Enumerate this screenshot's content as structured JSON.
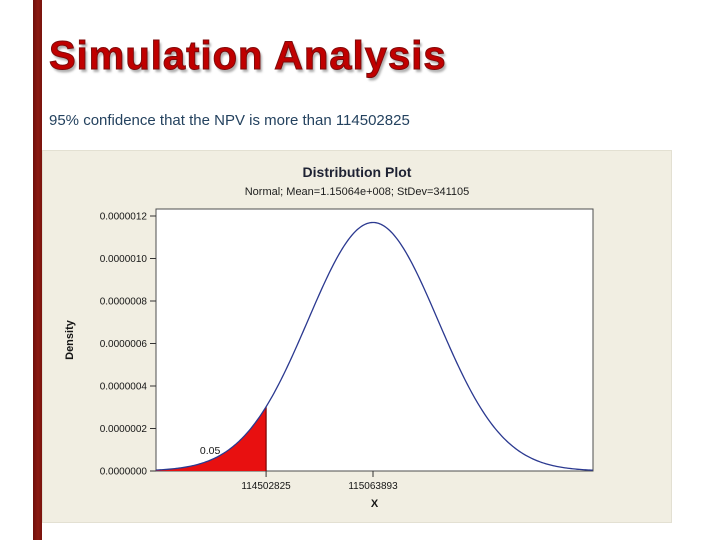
{
  "slide": {
    "title": "Simulation Analysis",
    "subtitle": "95% confidence that the NPV is more than 114502825"
  },
  "chart_data": {
    "type": "area",
    "title": "Distribution Plot",
    "subtitle": "Normal; Mean=1.15064e+008; StDev=341105",
    "xlabel": "X",
    "ylabel": "Density",
    "distribution": {
      "name": "normal",
      "mean": 115063893,
      "stdev": 341105
    },
    "shaded_region": {
      "side": "left-tail",
      "boundary": 114502825,
      "area_label": "0.05"
    },
    "x_ticks": [
      114502825,
      115063893
    ],
    "y_ticks": [
      1.2e-06,
      1e-06,
      8e-07,
      6e-07,
      4e-07,
      2e-07,
      0.0
    ],
    "ylim": [
      0,
      1.2e-06
    ],
    "legend": false,
    "grid": false,
    "colors": {
      "curve": "#2b3990",
      "tail_fill": "#e81010",
      "tail_edge": "#7a0000",
      "chart_bg": "#f1eee2",
      "plot_bg": "#ffffff",
      "plot_border": "#4d4d4d",
      "accent_bar": "#8c1a11",
      "title_red": "#c00000"
    }
  }
}
